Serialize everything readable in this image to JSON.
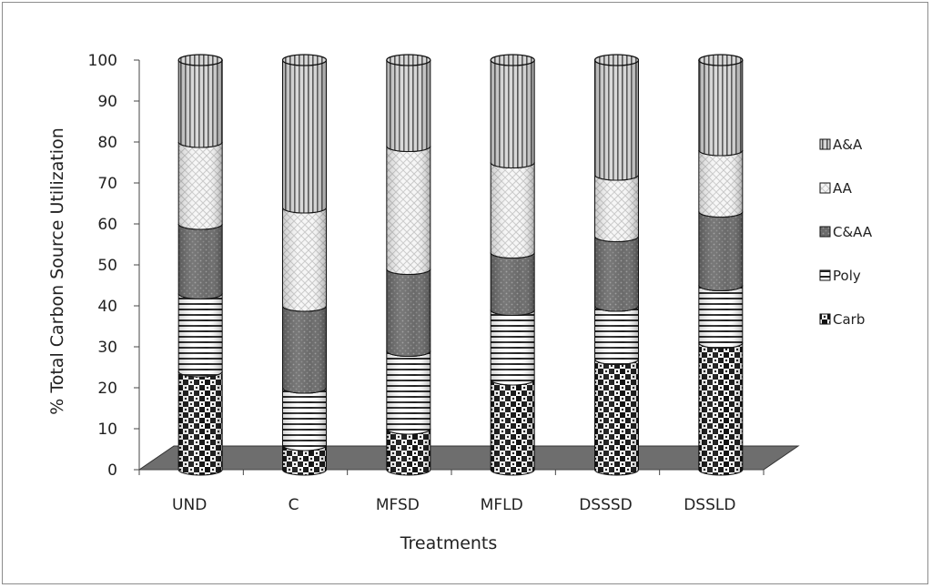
{
  "chart_data": {
    "type": "bar",
    "stacked": true,
    "style": "3d-cylinder",
    "title": "",
    "xlabel": "Treatments",
    "ylabel": "% Total Carbon Source Utilization",
    "ylim": [
      0,
      100
    ],
    "yticks": [
      0,
      10,
      20,
      30,
      40,
      50,
      60,
      70,
      80,
      90,
      100
    ],
    "grid": false,
    "legend_position": "right",
    "categories": [
      "UND",
      "C",
      "MFSD",
      "MFLD",
      "DSSSD",
      "DSSLD"
    ],
    "series": [
      {
        "name": "Carb",
        "pattern": "checker",
        "values": [
          24,
          6,
          10,
          22,
          27,
          31
        ]
      },
      {
        "name": "Poly",
        "pattern": "horizontal-lines",
        "values": [
          19,
          14,
          19,
          17,
          13,
          14
        ]
      },
      {
        "name": "C&AA",
        "pattern": "dark-dots",
        "values": [
          17,
          20,
          20,
          14,
          17,
          18
        ]
      },
      {
        "name": "AA",
        "pattern": "light-crosshatch",
        "values": [
          20,
          24,
          30,
          22,
          15,
          15
        ]
      },
      {
        "name": "A&A",
        "pattern": "vertical-lines",
        "values": [
          20,
          36,
          21,
          25,
          28,
          22
        ]
      }
    ],
    "floor_color": "#6e6e6e"
  }
}
